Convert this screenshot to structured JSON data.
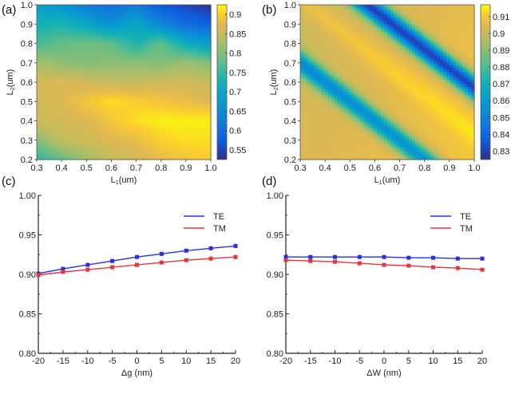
{
  "chart_data": [
    {
      "panel": "(a)",
      "type": "heatmap",
      "xlabel": "L1(um)",
      "xlabel_main": "L",
      "xlabel_sub": "1",
      "xlabel_unit": "(um)",
      "ylabel": "L2(um)",
      "ylabel_main": "L",
      "ylabel_sub": "2",
      "ylabel_unit": "(um)",
      "xlim": [
        0.3,
        1.0
      ],
      "ylim": [
        0.2,
        1.0
      ],
      "xticks": [
        "0.3",
        "0.4",
        "0.5",
        "0.6",
        "0.7",
        "0.8",
        "0.9",
        "1.0"
      ],
      "yticks": [
        "0.2",
        "0.3",
        "0.4",
        "0.5",
        "0.6",
        "0.7",
        "0.8",
        "0.9",
        "1.0"
      ],
      "colorbar": {
        "range": [
          0.525,
          0.925
        ],
        "ticks": [
          "0.55",
          "0.6",
          "0.65",
          "0.7",
          "0.75",
          "0.8",
          "0.85",
          "0.9"
        ],
        "tick_values": [
          0.55,
          0.6,
          0.65,
          0.7,
          0.75,
          0.8,
          0.85,
          0.9
        ],
        "colormap": "parula"
      },
      "x": [
        0.3,
        0.4,
        0.5,
        0.6,
        0.7,
        0.8,
        0.9,
        1.0
      ],
      "y": [
        0.2,
        0.3,
        0.4,
        0.5,
        0.6,
        0.7,
        0.8,
        0.9,
        1.0
      ],
      "z": [
        [
          0.74,
          0.78,
          0.82,
          0.85,
          0.86,
          0.88,
          0.89,
          0.9
        ],
        [
          0.8,
          0.85,
          0.86,
          0.87,
          0.88,
          0.9,
          0.91,
          0.91
        ],
        [
          0.86,
          0.86,
          0.87,
          0.89,
          0.91,
          0.92,
          0.92,
          0.92
        ],
        [
          0.86,
          0.87,
          0.89,
          0.91,
          0.9,
          0.89,
          0.88,
          0.87
        ],
        [
          0.86,
          0.87,
          0.86,
          0.85,
          0.85,
          0.86,
          0.86,
          0.85
        ],
        [
          0.83,
          0.81,
          0.8,
          0.81,
          0.81,
          0.8,
          0.82,
          0.8
        ],
        [
          0.76,
          0.78,
          0.79,
          0.78,
          0.73,
          0.78,
          0.71,
          0.68
        ],
        [
          0.72,
          0.73,
          0.7,
          0.66,
          0.7,
          0.64,
          0.6,
          0.58
        ],
        [
          0.69,
          0.66,
          0.62,
          0.6,
          0.62,
          0.57,
          0.55,
          0.53
        ]
      ]
    },
    {
      "panel": "(b)",
      "type": "heatmap",
      "xlabel": "L1(um)",
      "xlabel_main": "L",
      "xlabel_sub": "1",
      "xlabel_unit": "(um)",
      "ylabel": "L2(um)",
      "ylabel_main": "L",
      "ylabel_sub": "2",
      "ylabel_unit": "(um)",
      "xlim": [
        0.3,
        1.0
      ],
      "ylim": [
        0.2,
        1.0
      ],
      "xticks": [
        "0.3",
        "0.4",
        "0.5",
        "0.6",
        "0.7",
        "0.8",
        "0.9",
        "1.0"
      ],
      "yticks": [
        "0.2",
        "0.3",
        "0.4",
        "0.5",
        "0.6",
        "0.7",
        "0.8",
        "0.9",
        "1.0"
      ],
      "colorbar": {
        "range": [
          0.825,
          0.917
        ],
        "ticks": [
          "0.83",
          "0.84",
          "0.85",
          "0.86",
          "0.87",
          "0.88",
          "0.89",
          "0.9",
          "0.91"
        ],
        "tick_values": [
          0.83,
          0.84,
          0.85,
          0.86,
          0.87,
          0.88,
          0.89,
          0.9,
          0.91
        ],
        "colormap": "parula"
      },
      "pattern": "diagonal bands: two low-value stripes along L1 + L2 ≈ 1.05 and L1 + L2 ≈ 1.55",
      "band_centers_sum": [
        1.0,
        1.57
      ],
      "band_min_values": [
        0.855,
        0.828
      ],
      "background_value": 0.905
    },
    {
      "panel": "(c)",
      "type": "line",
      "xlabel": "Δg (nm)",
      "ylabel": "",
      "xlim": [
        -20,
        20
      ],
      "ylim": [
        0.8,
        1.0
      ],
      "xticks": [
        "-20",
        "-15",
        "-10",
        "-5",
        "0",
        "5",
        "10",
        "15",
        "20"
      ],
      "yticks": [
        "0.80",
        "0.85",
        "0.90",
        "0.95",
        "1.00"
      ],
      "x": [
        -20,
        -15,
        -10,
        -5,
        0,
        5,
        10,
        15,
        20
      ],
      "series": [
        {
          "name": "TE",
          "color": "#2b2ee6",
          "values": [
            0.901,
            0.907,
            0.912,
            0.917,
            0.922,
            0.926,
            0.93,
            0.933,
            0.936
          ]
        },
        {
          "name": "TM",
          "color": "#e8333a",
          "values": [
            0.899,
            0.903,
            0.906,
            0.909,
            0.912,
            0.915,
            0.918,
            0.92,
            0.922
          ]
        }
      ],
      "legend_position": "top-right"
    },
    {
      "panel": "(d)",
      "type": "line",
      "xlabel": "ΔW (nm)",
      "ylabel": "",
      "xlim": [
        -20,
        20
      ],
      "ylim": [
        0.8,
        1.0
      ],
      "xticks": [
        "-20",
        "-15",
        "-10",
        "-5",
        "0",
        "5",
        "10",
        "15",
        "20"
      ],
      "yticks": [
        "0.80",
        "0.85",
        "0.90",
        "0.95",
        "1.00"
      ],
      "x": [
        -20,
        -15,
        -10,
        -5,
        0,
        5,
        10,
        15,
        20
      ],
      "series": [
        {
          "name": "TE",
          "color": "#2b2ee6",
          "values": [
            0.922,
            0.922,
            0.922,
            0.922,
            0.922,
            0.921,
            0.921,
            0.92,
            0.92
          ]
        },
        {
          "name": "TM",
          "color": "#e8333a",
          "values": [
            0.918,
            0.917,
            0.916,
            0.914,
            0.912,
            0.911,
            0.909,
            0.908,
            0.906
          ]
        }
      ],
      "legend_position": "top-right"
    }
  ]
}
